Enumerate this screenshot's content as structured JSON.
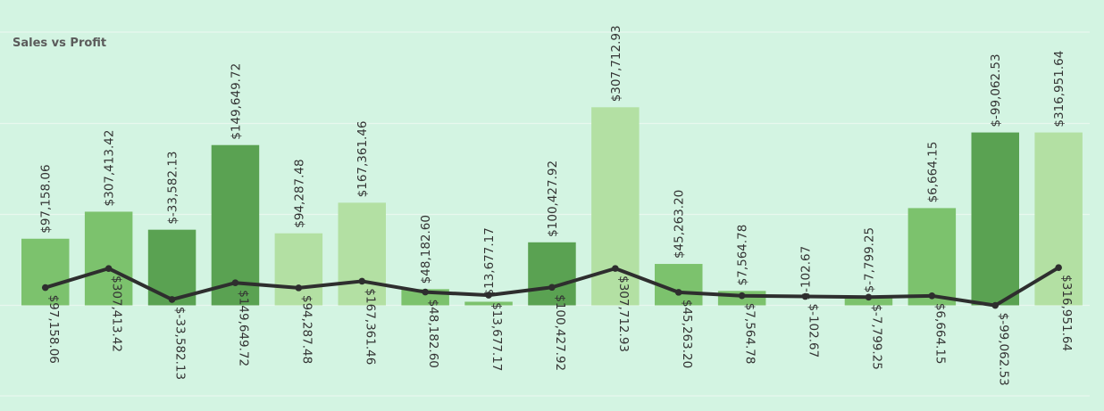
{
  "chart_data": {
    "type": "bar",
    "title": "Sales vs Profit",
    "grid": true,
    "series": [
      {
        "kind": "bar",
        "values": [
          97158.06,
          307413.42,
          -33582.13,
          149649.72,
          94287.48,
          167361.46,
          48182.6,
          13677.17,
          100427.92,
          307712.93,
          45263.2,
          7564.78,
          -102.67,
          -7799.25,
          6664.15,
          -99062.53,
          316951.64
        ],
        "labels": [
          "$97,158.06",
          "$307,413.42",
          "$-33,582.13",
          "$149,649.72",
          "$94,287.48",
          "$167,361.46",
          "$48,182.60",
          "$13,677.17",
          "$100,427.92",
          "$307,712.93",
          "$45,263.20",
          "$7,564.78",
          "$-102.67",
          "$-7,799.25",
          "$6,664.15",
          "$-99,062.53",
          "$316,951.64"
        ]
      },
      {
        "kind": "line",
        "values": [
          97158.06,
          307413.42,
          -33582.13,
          149649.72,
          94287.48,
          167361.46,
          48182.6,
          13677.17,
          100427.92,
          307712.93,
          45263.2,
          7564.78,
          -102.67,
          -7799.25,
          6664.15,
          -99062.53,
          316951.64
        ],
        "labels": [
          "$97,158.06",
          "$307,413.42",
          "$-33,582.13",
          "$149,649.72",
          "$94,287.48",
          "$167,361.46",
          "$48,182.60",
          "$13,677.17",
          "$100,427.92",
          "$307,712.93",
          "$45,263.20",
          "$7,564.78",
          "$-102.67",
          "$-7,799.25",
          "$6,664.15",
          "$-99,062.53",
          "$316,951.64"
        ]
      }
    ],
    "bar_heights": [
      0.37,
      0.52,
      0.42,
      0.89,
      0.4,
      0.57,
      0.09,
      0.02,
      0.35,
      1.1,
      0.23,
      0.08,
      0.0,
      0.04,
      0.54,
      0.96,
      0.96
    ],
    "bar_colors": [
      "#7cc26d",
      "#7cc26d",
      "#5aa252",
      "#5aa252",
      "#b3e0a3",
      "#b3e0a3",
      "#7cc26d",
      "#7cc26d",
      "#5aa252",
      "#b3e0a3",
      "#7cc26d",
      "#7cc26d",
      "#5aa252",
      "#7cc26d",
      "#7cc26d",
      "#5aa252",
      "#b3e0a3"
    ],
    "line_color": "#2e2e2e",
    "grid_color": "#e8f8ee"
  }
}
